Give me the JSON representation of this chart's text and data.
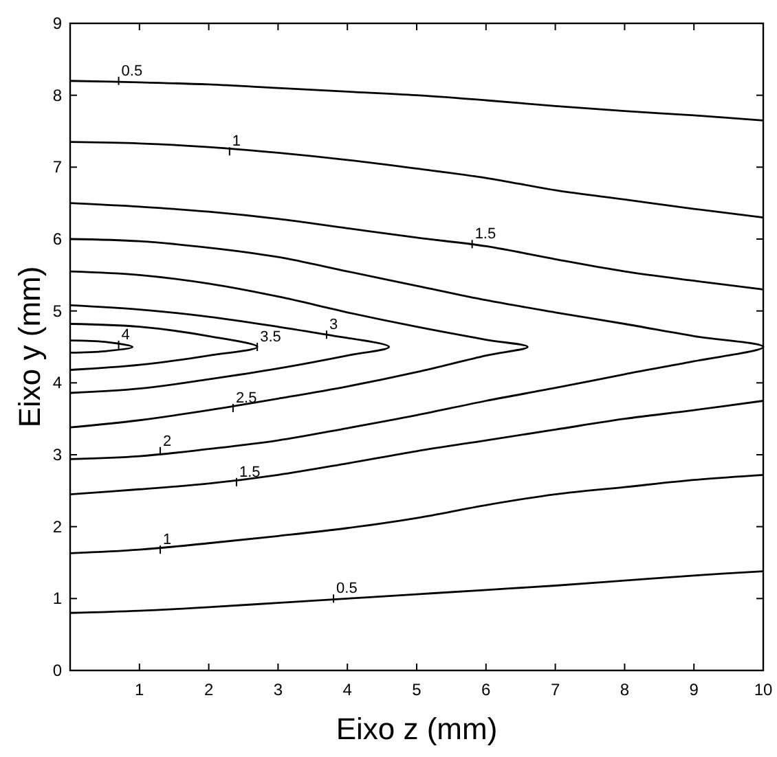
{
  "chart_data": {
    "type": "line",
    "xlabel": "Eixo z (mm)",
    "ylabel": "Eixo y (mm)",
    "xlim": [
      0,
      10
    ],
    "ylim": [
      0,
      9
    ],
    "xticks": [
      {
        "value": 0,
        "label": null
      },
      1,
      2,
      3,
      4,
      5,
      6,
      7,
      8,
      9,
      10
    ],
    "yticks": [
      0,
      1,
      2,
      3,
      4,
      5,
      6,
      7,
      8,
      9
    ],
    "grid": false,
    "series": [
      {
        "color": "#000000",
        "x": [
          0,
          1,
          2,
          3,
          4,
          5,
          6,
          7,
          8,
          9,
          10
        ],
        "values": [
          8.2,
          8.18,
          8.15,
          8.1,
          8.05,
          8.0,
          7.93,
          7.85,
          7.78,
          7.72,
          7.65
        ]
      },
      {
        "color": "#000000",
        "x": [
          0,
          1,
          2,
          3,
          4,
          5,
          6,
          7,
          8,
          9,
          10
        ],
        "values": [
          7.35,
          7.33,
          7.28,
          7.2,
          7.1,
          6.98,
          6.85,
          6.68,
          6.55,
          6.42,
          6.3
        ]
      },
      {
        "color": "#000000",
        "x": [
          0,
          1,
          2,
          3,
          4,
          5,
          6,
          7,
          8,
          9,
          10
        ],
        "values": [
          6.5,
          6.45,
          6.38,
          6.28,
          6.15,
          6.02,
          5.9,
          5.72,
          5.55,
          5.42,
          5.3
        ]
      },
      {
        "color": "#000000",
        "x": [
          0,
          1,
          2,
          3,
          4,
          5,
          6,
          7,
          8,
          9,
          10,
          9,
          8,
          7,
          6,
          5,
          4,
          3,
          2,
          1,
          0
        ],
        "values": [
          6.0,
          5.97,
          5.88,
          5.75,
          5.55,
          5.35,
          5.15,
          4.98,
          4.82,
          4.65,
          4.5,
          4.3,
          4.12,
          3.93,
          3.75,
          3.55,
          3.37,
          3.2,
          3.08,
          2.98,
          2.94
        ]
      },
      {
        "color": "#000000",
        "x": [
          0,
          1,
          2,
          3,
          4,
          5,
          6,
          6.6,
          6,
          5,
          4,
          3,
          2,
          1,
          0
        ],
        "values": [
          5.55,
          5.5,
          5.38,
          5.2,
          4.98,
          4.78,
          4.6,
          4.5,
          4.38,
          4.15,
          3.95,
          3.78,
          3.62,
          3.48,
          3.38
        ]
      },
      {
        "color": "#000000",
        "x": [
          0,
          1,
          2,
          3,
          3.7,
          4.6,
          4,
          3,
          2,
          1,
          0
        ],
        "values": [
          5.08,
          5.02,
          4.92,
          4.78,
          4.67,
          4.5,
          4.38,
          4.2,
          4.05,
          3.92,
          3.86
        ]
      },
      {
        "color": "#000000",
        "x": [
          0,
          1,
          2,
          2.7,
          2,
          1,
          0
        ],
        "values": [
          4.82,
          4.78,
          4.65,
          4.5,
          4.38,
          4.25,
          4.18
        ]
      },
      {
        "color": "#000000",
        "x": [
          0,
          0.5,
          0.9,
          0.5,
          0
        ],
        "values": [
          4.59,
          4.57,
          4.5,
          4.44,
          4.42
        ]
      },
      {
        "color": "#000000",
        "x": [
          0,
          1,
          2,
          3,
          4,
          5,
          6,
          7,
          8,
          9,
          10
        ],
        "values": [
          2.45,
          2.52,
          2.6,
          2.72,
          2.88,
          3.05,
          3.2,
          3.35,
          3.5,
          3.62,
          3.75
        ]
      },
      {
        "color": "#000000",
        "x": [
          0,
          1,
          2,
          3,
          4,
          5,
          6,
          7,
          8,
          9,
          10
        ],
        "values": [
          1.63,
          1.68,
          1.77,
          1.87,
          1.98,
          2.12,
          2.3,
          2.45,
          2.55,
          2.65,
          2.72
        ]
      },
      {
        "color": "#000000",
        "x": [
          0,
          1,
          2,
          3,
          4,
          5,
          6,
          7,
          8,
          9,
          10
        ],
        "values": [
          0.8,
          0.83,
          0.88,
          0.94,
          1.0,
          1.06,
          1.12,
          1.18,
          1.25,
          1.32,
          1.38
        ]
      }
    ],
    "annotations": [
      {
        "text": "0.5",
        "x": 0.7,
        "y": 8.2
      },
      {
        "text": "1",
        "x": 2.3,
        "y": 7.22
      },
      {
        "text": "1.5",
        "x": 5.8,
        "y": 5.93
      },
      {
        "text": "3",
        "x": 3.7,
        "y": 4.67
      },
      {
        "text": "3.5",
        "x": 2.7,
        "y": 4.5
      },
      {
        "text": "4",
        "x": 0.7,
        "y": 4.53
      },
      {
        "text": "2.5",
        "x": 2.35,
        "y": 3.65
      },
      {
        "text": "2",
        "x": 1.3,
        "y": 3.05
      },
      {
        "text": "1.5",
        "x": 2.4,
        "y": 2.62
      },
      {
        "text": "1",
        "x": 1.3,
        "y": 1.68
      },
      {
        "text": "0.5",
        "x": 3.8,
        "y": 1.0
      }
    ]
  }
}
